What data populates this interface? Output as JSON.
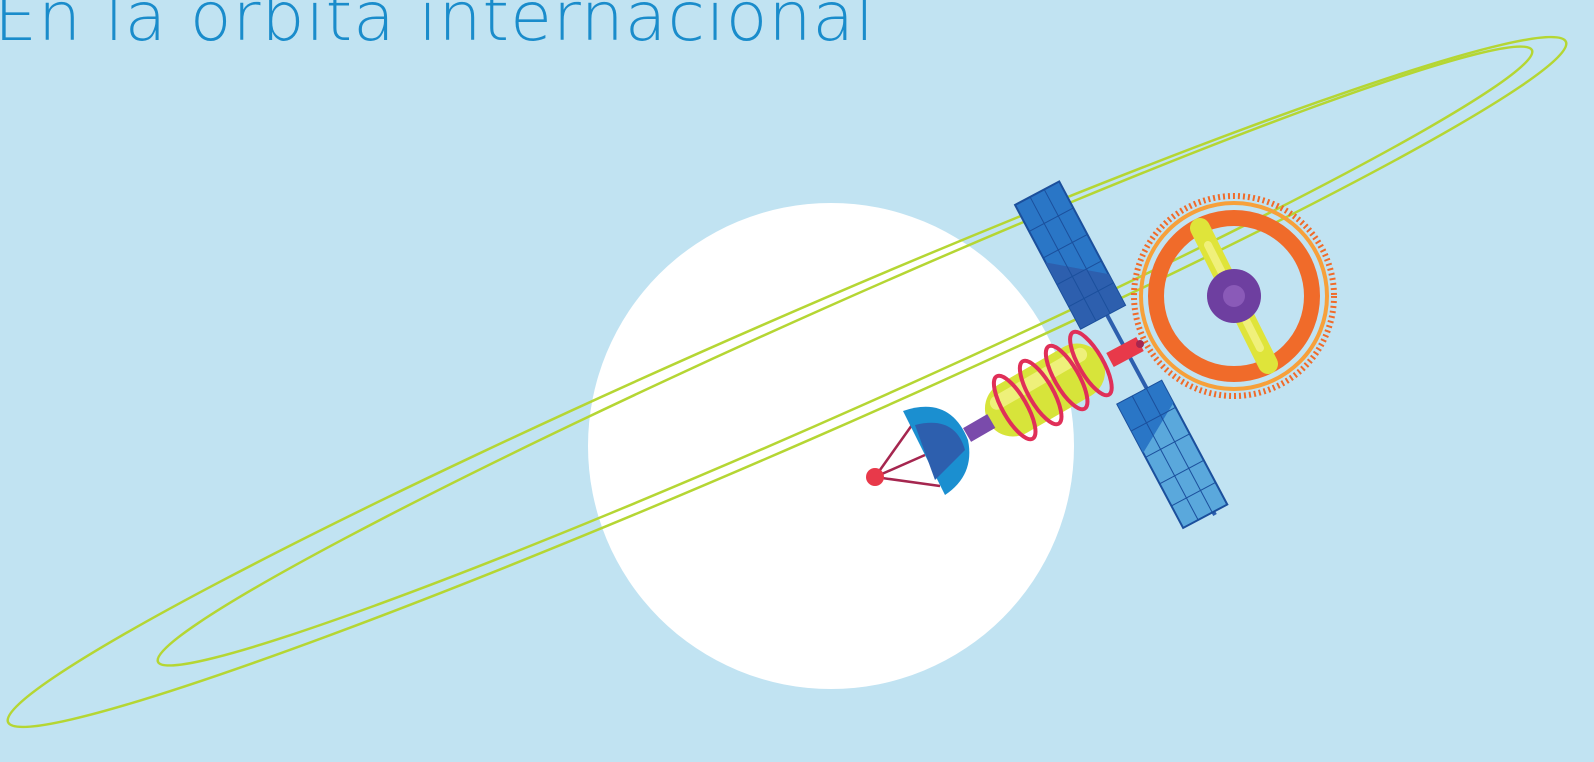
{
  "header": {
    "title": "En la órbita internacional"
  }
}
